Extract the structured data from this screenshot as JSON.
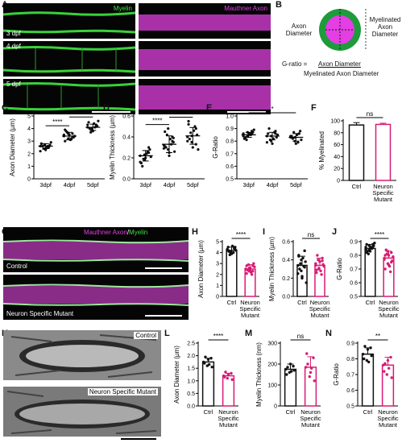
{
  "colors": {
    "myelin": "#39d13a",
    "axon": "#e43ee4",
    "ctrl": "#111111",
    "mutant": "#d81b74",
    "wt_point": "#111111"
  },
  "panels": {
    "A": {
      "label": "A",
      "myelin_title": "Myelin",
      "axon_title": "Mauthner Axon",
      "rows": [
        "3 dpf",
        "4 dpf",
        "5 dpf"
      ]
    },
    "B": {
      "label": "B",
      "axon_diameter": "Axon\nDiameter",
      "myelinated_diameter": "Myelinated\nAxon\nDiameter",
      "formula_lhs": "G-ratio = ",
      "numerator": "Axon Diameter",
      "denominator": "Myelinated Axon Diameter"
    },
    "G": {
      "label": "G",
      "title_axon": "Mauthner Axon",
      "title_sep": "/",
      "title_myelin": "Myelin",
      "control": "Control",
      "mutant": "Neuron Specific Mutant"
    },
    "K": {
      "label": "K",
      "control": "Control",
      "mutant": "Neuron Specific Mutant"
    }
  },
  "chart_data": [
    {
      "id": "C",
      "type": "scatter",
      "ylabel": "Axon Diameter (µm)",
      "categories": [
        "3dpf",
        "4dpf",
        "5dpf"
      ],
      "ylim": [
        0,
        5
      ],
      "yticks": [
        0,
        1,
        2,
        3,
        4,
        5
      ],
      "series": [
        {
          "values": [
            2.6,
            2.4,
            2.5,
            2.8,
            2.3,
            2.7,
            2.6,
            2.5,
            2.9,
            2.4,
            2.6,
            2.2,
            2.7,
            2.5,
            2.8
          ]
        },
        {
          "values": [
            3.4,
            3.2,
            3.6,
            3.0,
            3.5,
            3.3,
            3.8,
            3.1,
            3.4,
            3.7,
            3.2,
            3.5,
            3.6,
            3.3,
            3.9
          ]
        },
        {
          "values": [
            4.1,
            3.9,
            4.3,
            4.5,
            3.8,
            4.2,
            4.0,
            4.4,
            4.6,
            3.7,
            4.1,
            4.3,
            4.0,
            4.2
          ]
        }
      ],
      "means": [
        2.6,
        3.4,
        4.1
      ],
      "sds": [
        0.2,
        0.3,
        0.25
      ],
      "significance": [
        {
          "from": 0,
          "to": 1,
          "label": "****"
        },
        {
          "from": 1,
          "to": 2,
          "label": "****"
        }
      ]
    },
    {
      "id": "D",
      "type": "scatter",
      "ylabel": "Myelin Thickness (µm)",
      "categories": [
        "3dpf",
        "4dpf",
        "5dpf"
      ],
      "ylim": [
        0,
        0.6
      ],
      "yticks": [
        0.0,
        0.2,
        0.4,
        0.6
      ],
      "series": [
        {
          "values": [
            0.22,
            0.18,
            0.25,
            0.15,
            0.2,
            0.28,
            0.12,
            0.24,
            0.21,
            0.19,
            0.26,
            0.16,
            0.23,
            0.3
          ]
        },
        {
          "values": [
            0.32,
            0.28,
            0.4,
            0.45,
            0.22,
            0.35,
            0.3,
            0.38,
            0.26,
            0.42,
            0.33,
            0.29,
            0.48,
            0.36,
            0.31,
            0.25,
            0.39
          ]
        },
        {
          "values": [
            0.4,
            0.35,
            0.48,
            0.52,
            0.3,
            0.42,
            0.38,
            0.46,
            0.28,
            0.44,
            0.5,
            0.36,
            0.41,
            0.33,
            0.55
          ]
        }
      ],
      "means": [
        0.22,
        0.33,
        0.41
      ],
      "sds": [
        0.05,
        0.08,
        0.08
      ],
      "significance": [
        {
          "from": 0,
          "to": 1,
          "label": "****"
        },
        {
          "from": 1,
          "to": 2,
          "label": "****"
        }
      ]
    },
    {
      "id": "E",
      "type": "scatter",
      "ylabel": "G-Ratio",
      "categories": [
        "3dpf",
        "4dpf",
        "5dpf"
      ],
      "ylim": [
        0.5,
        1.0
      ],
      "yticks": [
        0.5,
        0.6,
        0.7,
        0.8,
        0.9,
        1.0
      ],
      "series": [
        {
          "values": [
            0.86,
            0.84,
            0.88,
            0.82,
            0.85,
            0.87,
            0.83,
            0.86,
            0.89,
            0.81,
            0.85,
            0.84,
            0.87,
            0.86,
            0.82
          ]
        },
        {
          "values": [
            0.84,
            0.8,
            0.88,
            0.86,
            0.78,
            0.83,
            0.9,
            0.82,
            0.85,
            0.81,
            0.87,
            0.79,
            0.84,
            0.86
          ]
        },
        {
          "values": [
            0.83,
            0.8,
            0.86,
            0.84,
            0.78,
            0.88,
            0.82,
            0.85,
            0.81,
            0.87,
            0.79,
            0.84,
            0.83,
            0.86
          ]
        }
      ],
      "means": [
        0.85,
        0.84,
        0.83
      ],
      "sds": [
        0.02,
        0.03,
        0.03
      ],
      "significance": [
        {
          "from": 0,
          "to": 2,
          "label": "*"
        }
      ]
    },
    {
      "id": "F",
      "type": "bar",
      "ylabel": "% Myelinated",
      "categories": [
        "Ctrl",
        "Neuron\nSpecific\nMutant"
      ],
      "ylim": [
        0,
        100
      ],
      "yticks": [
        0,
        20,
        40,
        60,
        80,
        100
      ],
      "values": [
        93,
        94
      ],
      "errors": [
        4,
        2
      ],
      "significance": [
        {
          "from": 0,
          "to": 1,
          "label": "ns"
        }
      ]
    },
    {
      "id": "H",
      "type": "bar",
      "ylabel": "Axon Diameter (µm)",
      "categories": [
        "Ctrl",
        "Neuron\nSpecific\nMutant"
      ],
      "ylim": [
        0,
        5
      ],
      "yticks": [
        0,
        1,
        2,
        3,
        4,
        5
      ],
      "values": [
        4.2,
        2.5
      ],
      "errors": [
        0.3,
        0.4
      ],
      "points": [
        [
          4.2,
          4.0,
          4.4,
          4.5,
          3.9,
          4.3,
          4.1,
          4.6,
          4.2,
          3.8,
          4.0,
          4.3,
          4.1,
          4.4,
          4.2,
          3.9,
          4.5
        ],
        [
          2.5,
          2.3,
          2.8,
          2.1,
          2.6,
          3.0,
          2.4,
          2.2,
          2.7,
          2.9,
          2.0,
          2.5,
          2.6,
          2.3,
          2.8,
          2.4
        ]
      ],
      "significance": [
        {
          "from": 0,
          "to": 1,
          "label": "****"
        }
      ]
    },
    {
      "id": "I",
      "type": "bar",
      "ylabel": "Myelin Thickness (µm)",
      "categories": [
        "Ctrl",
        "Neuron\nSpecific\nMutant"
      ],
      "ylim": [
        0,
        0.6
      ],
      "yticks": [
        0.0,
        0.2,
        0.4,
        0.6
      ],
      "values": [
        0.34,
        0.34
      ],
      "errors": [
        0.1,
        0.08
      ],
      "points": [
        [
          0.34,
          0.28,
          0.5,
          0.45,
          0.2,
          0.38,
          0.3,
          0.42,
          0.15,
          0.36,
          0.33,
          0.25,
          0.4,
          0.32,
          0.44,
          0.22
        ],
        [
          0.34,
          0.3,
          0.42,
          0.26,
          0.38,
          0.35,
          0.45,
          0.28,
          0.33,
          0.4,
          0.24,
          0.36,
          0.31,
          0.39,
          0.29
        ]
      ],
      "significance": [
        {
          "from": 0,
          "to": 1,
          "label": "ns"
        }
      ]
    },
    {
      "id": "J",
      "type": "bar",
      "ylabel": "G-Ratio",
      "categories": [
        "Ctrl",
        "Neuron\nSpecific\nMutant"
      ],
      "ylim": [
        0.5,
        0.9
      ],
      "yticks": [
        0.5,
        0.6,
        0.7,
        0.8,
        0.9
      ],
      "values": [
        0.85,
        0.78
      ],
      "errors": [
        0.03,
        0.05
      ],
      "points": [
        [
          0.86,
          0.84,
          0.88,
          0.82,
          0.85,
          0.87,
          0.83,
          0.86,
          0.89,
          0.81,
          0.85,
          0.84,
          0.87,
          0.86,
          0.88,
          0.83
        ],
        [
          0.78,
          0.74,
          0.82,
          0.7,
          0.8,
          0.76,
          0.84,
          0.72,
          0.79,
          0.81,
          0.68,
          0.77,
          0.83,
          0.75,
          0.8,
          0.73
        ]
      ],
      "significance": [
        {
          "from": 0,
          "to": 1,
          "label": "****"
        }
      ]
    },
    {
      "id": "L",
      "type": "bar",
      "ylabel": "Axon Diameter (µm)",
      "categories": [
        "Ctrl",
        "Neuron\nSpecific\nMutant"
      ],
      "ylim": [
        0,
        2.5
      ],
      "yticks": [
        0.0,
        0.5,
        1.0,
        1.5,
        2.0,
        2.5
      ],
      "values": [
        1.75,
        1.2
      ],
      "errors": [
        0.15,
        0.1
      ],
      "points": [
        [
          1.75,
          1.6,
          1.9,
          1.7,
          1.85,
          1.55,
          1.95,
          1.65
        ],
        [
          1.2,
          1.1,
          1.3,
          1.15,
          1.25,
          1.05,
          1.35
        ]
      ],
      "significance": [
        {
          "from": 0,
          "to": 1,
          "label": "****"
        }
      ]
    },
    {
      "id": "M",
      "type": "bar",
      "ylabel": "Myelin Thickness (nm)",
      "categories": [
        "Ctrl",
        "Neuron\nSpecific\nMutant"
      ],
      "ylim": [
        0,
        300
      ],
      "yticks": [
        0,
        100,
        200,
        300
      ],
      "values": [
        175,
        185
      ],
      "errors": [
        25,
        50
      ],
      "points": [
        [
          175,
          160,
          190,
          150,
          200,
          170,
          185,
          165
        ],
        [
          185,
          140,
          230,
          250,
          160,
          120,
          200,
          180
        ]
      ],
      "significance": [
        {
          "from": 0,
          "to": 1,
          "label": "ns"
        }
      ]
    },
    {
      "id": "N",
      "type": "bar",
      "ylabel": "G-Ratio",
      "categories": [
        "Ctrl",
        "Neuron\nSpecific\nMutant"
      ],
      "ylim": [
        0.5,
        0.9
      ],
      "yticks": [
        0.5,
        0.6,
        0.7,
        0.8,
        0.9
      ],
      "values": [
        0.83,
        0.76
      ],
      "errors": [
        0.04,
        0.05
      ],
      "points": [
        [
          0.83,
          0.79,
          0.87,
          0.8,
          0.86,
          0.82,
          0.88,
          0.78
        ],
        [
          0.76,
          0.7,
          0.81,
          0.72,
          0.79,
          0.68,
          0.77,
          0.74
        ]
      ],
      "significance": [
        {
          "from": 0,
          "to": 1,
          "label": "**"
        }
      ]
    }
  ]
}
